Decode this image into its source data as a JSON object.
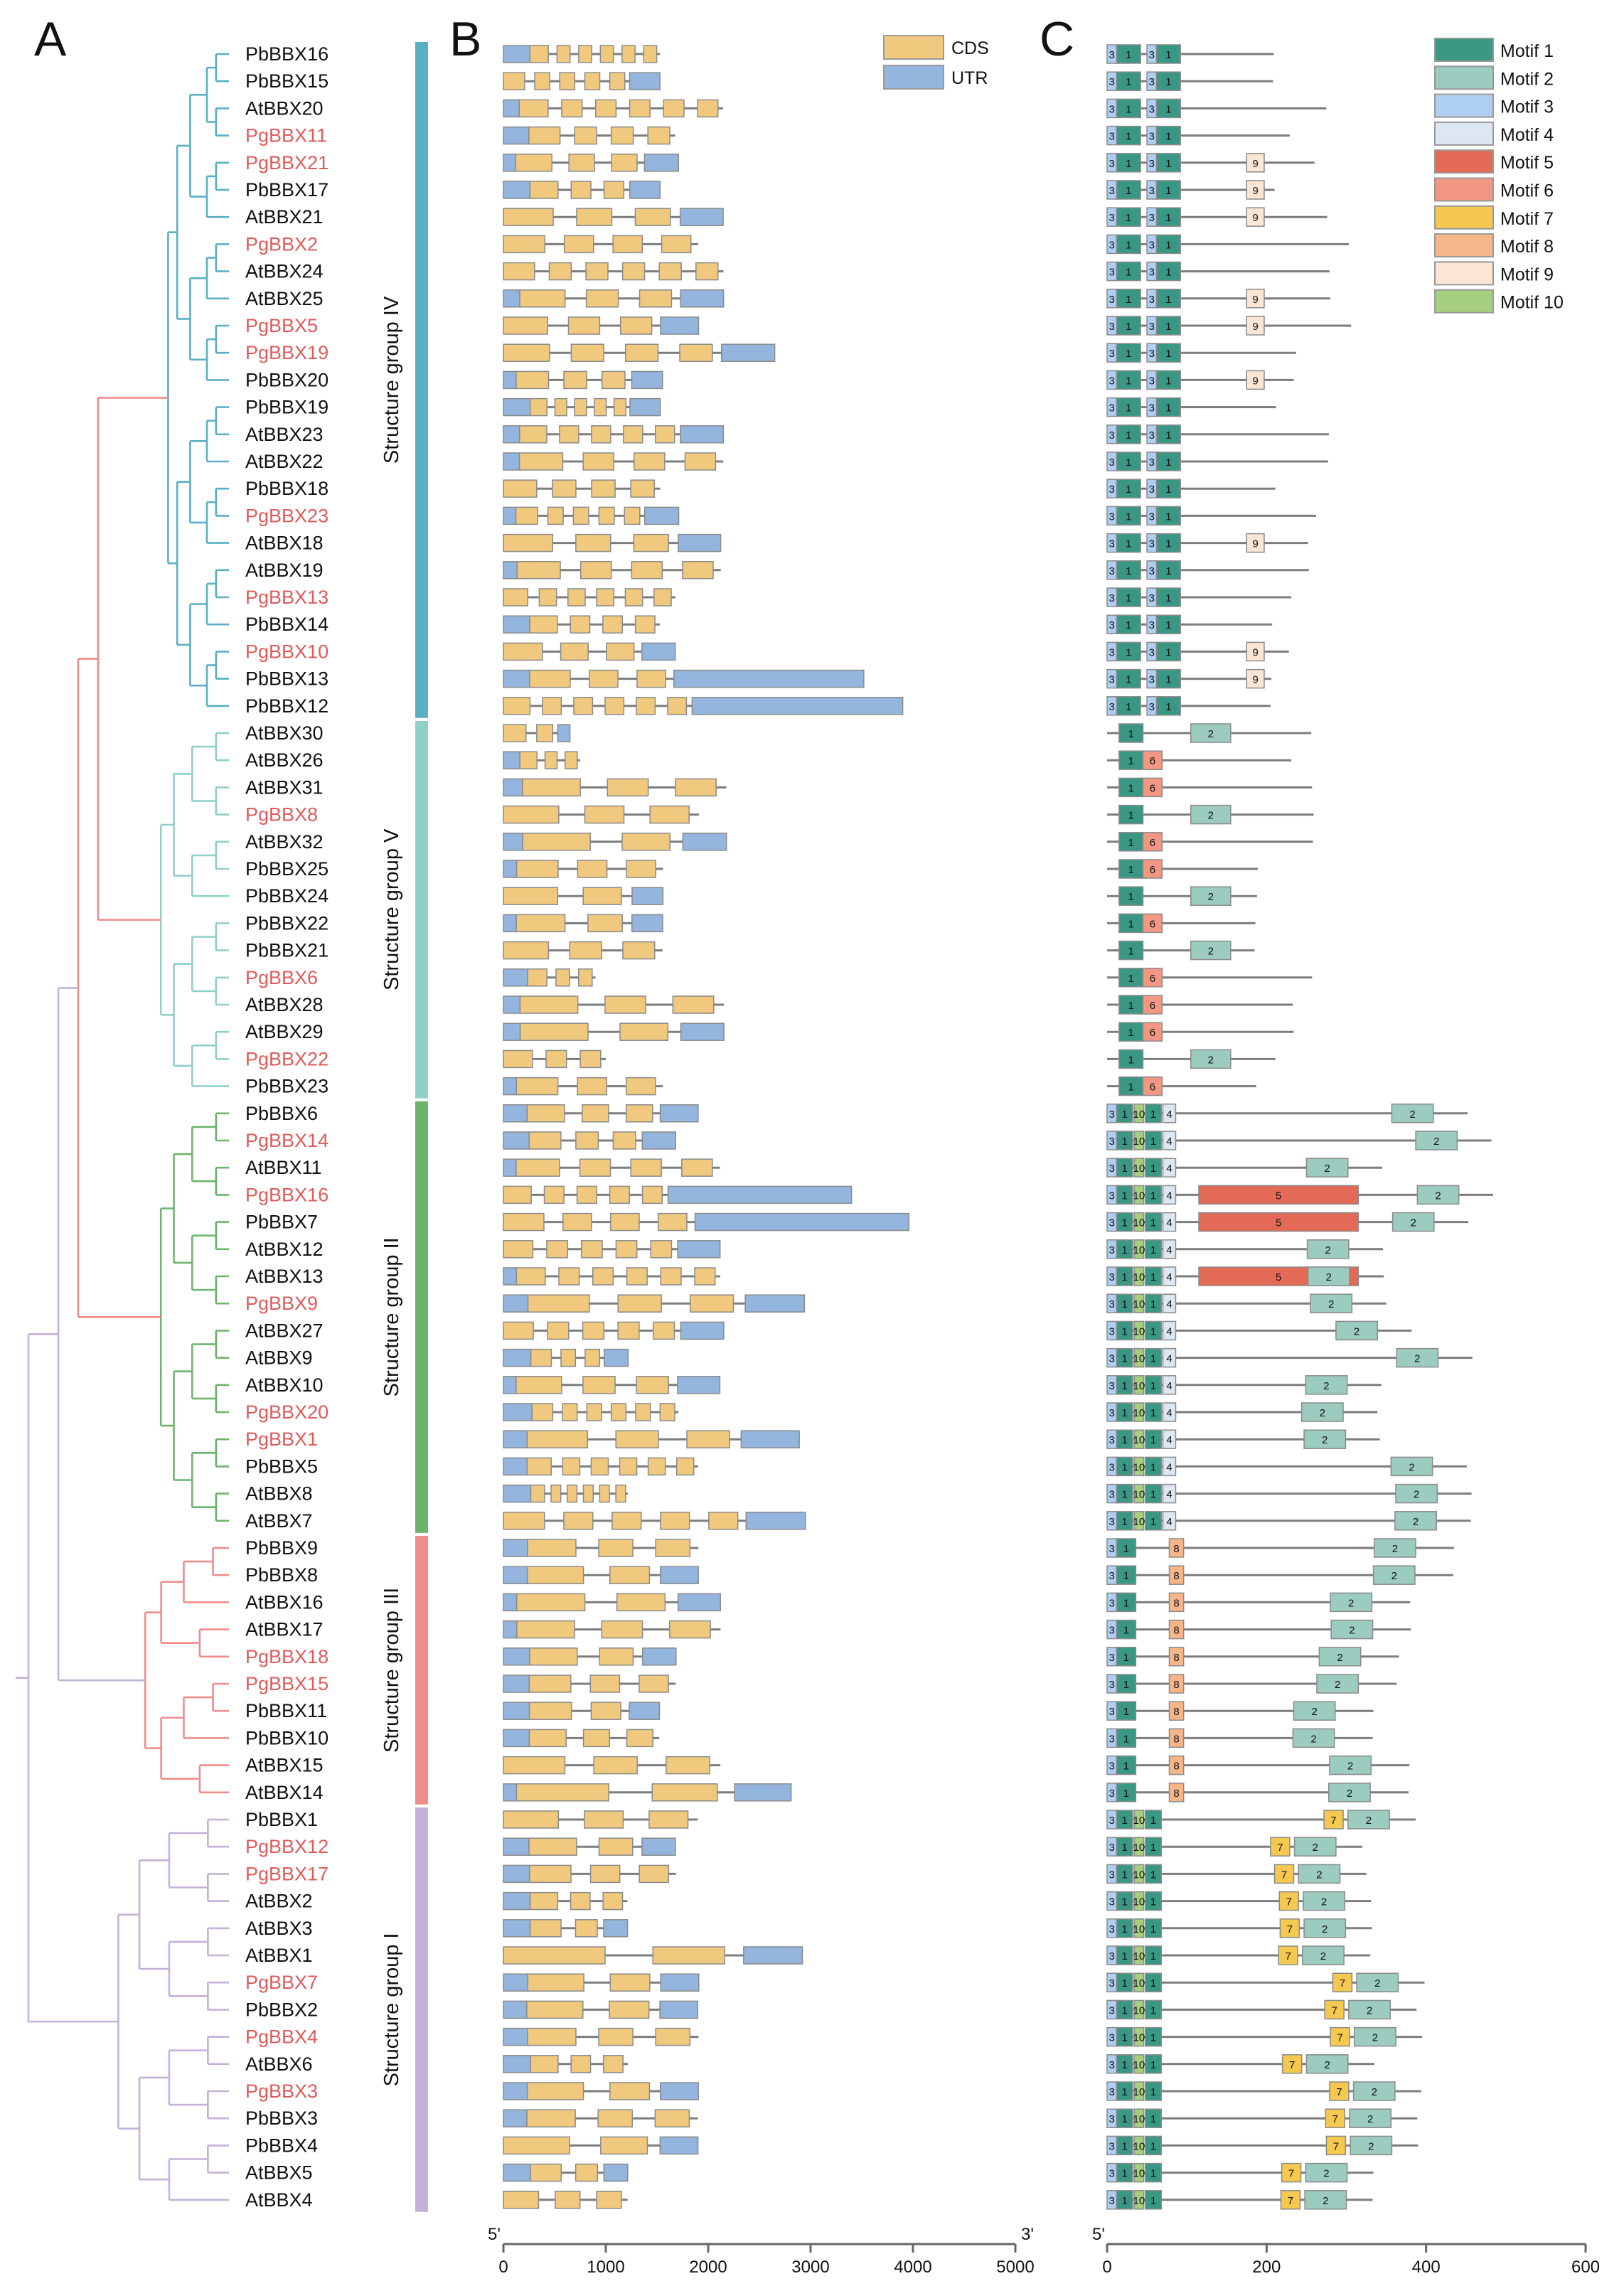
{
  "figure": {
    "panels": [
      "A",
      "B",
      "C"
    ],
    "group_colors": {
      "IV": "#5aafc2",
      "V": "#8fd0c9",
      "II": "#6cb46c",
      "III": "#ef8c8c",
      "I": "#c3b1d8"
    },
    "gene_color_pg": "#e05a5a",
    "gene_color_other": "#111111"
  },
  "genes": [
    {
      "name": "PbBBX16",
      "g": "IV"
    },
    {
      "name": "PbBBX15",
      "g": "IV"
    },
    {
      "name": "AtBBX20",
      "g": "IV"
    },
    {
      "name": "PgBBX11",
      "g": "IV"
    },
    {
      "name": "PgBBX21",
      "g": "IV"
    },
    {
      "name": "PbBBX17",
      "g": "IV"
    },
    {
      "name": "AtBBX21",
      "g": "IV"
    },
    {
      "name": "PgBBX2",
      "g": "IV"
    },
    {
      "name": "AtBBX24",
      "g": "IV"
    },
    {
      "name": "AtBBX25",
      "g": "IV"
    },
    {
      "name": "PgBBX5",
      "g": "IV"
    },
    {
      "name": "PgBBX19",
      "g": "IV"
    },
    {
      "name": "PbBBX20",
      "g": "IV"
    },
    {
      "name": "PbBBX19",
      "g": "IV"
    },
    {
      "name": "AtBBX23",
      "g": "IV"
    },
    {
      "name": "AtBBX22",
      "g": "IV"
    },
    {
      "name": "PbBBX18",
      "g": "IV"
    },
    {
      "name": "PgBBX23",
      "g": "IV"
    },
    {
      "name": "AtBBX18",
      "g": "IV"
    },
    {
      "name": "AtBBX19",
      "g": "IV"
    },
    {
      "name": "PgBBX13",
      "g": "IV"
    },
    {
      "name": "PbBBX14",
      "g": "IV"
    },
    {
      "name": "PgBBX10",
      "g": "IV"
    },
    {
      "name": "PbBBX13",
      "g": "IV"
    },
    {
      "name": "PbBBX12",
      "g": "IV"
    },
    {
      "name": "AtBBX30",
      "g": "V"
    },
    {
      "name": "AtBBX26",
      "g": "V"
    },
    {
      "name": "AtBBX31",
      "g": "V"
    },
    {
      "name": "PgBBX8",
      "g": "V"
    },
    {
      "name": "AtBBX32",
      "g": "V"
    },
    {
      "name": "PbBBX25",
      "g": "V"
    },
    {
      "name": "PbBBX24",
      "g": "V"
    },
    {
      "name": "PbBBX22",
      "g": "V"
    },
    {
      "name": "PbBBX21",
      "g": "V"
    },
    {
      "name": "PgBBX6",
      "g": "V"
    },
    {
      "name": "AtBBX28",
      "g": "V"
    },
    {
      "name": "AtBBX29",
      "g": "V"
    },
    {
      "name": "PgBBX22",
      "g": "V"
    },
    {
      "name": "PbBBX23",
      "g": "V"
    },
    {
      "name": "PbBBX6",
      "g": "II"
    },
    {
      "name": "PgBBX14",
      "g": "II"
    },
    {
      "name": "AtBBX11",
      "g": "II"
    },
    {
      "name": "PgBBX16",
      "g": "II"
    },
    {
      "name": "PbBBX7",
      "g": "II"
    },
    {
      "name": "AtBBX12",
      "g": "II"
    },
    {
      "name": "AtBBX13",
      "g": "II"
    },
    {
      "name": "PgBBX9",
      "g": "II"
    },
    {
      "name": "AtBBX27",
      "g": "II"
    },
    {
      "name": "AtBBX9",
      "g": "II"
    },
    {
      "name": "AtBBX10",
      "g": "II"
    },
    {
      "name": "PgBBX20",
      "g": "II"
    },
    {
      "name": "PgBBX1",
      "g": "II"
    },
    {
      "name": "PbBBX5",
      "g": "II"
    },
    {
      "name": "AtBBX8",
      "g": "II"
    },
    {
      "name": "AtBBX7",
      "g": "II"
    },
    {
      "name": "PbBBX9",
      "g": "III"
    },
    {
      "name": "PbBBX8",
      "g": "III"
    },
    {
      "name": "AtBBX16",
      "g": "III"
    },
    {
      "name": "AtBBX17",
      "g": "III"
    },
    {
      "name": "PgBBX18",
      "g": "III"
    },
    {
      "name": "PgBBX15",
      "g": "III"
    },
    {
      "name": "PbBBX11",
      "g": "III"
    },
    {
      "name": "PbBBX10",
      "g": "III"
    },
    {
      "name": "AtBBX15",
      "g": "III"
    },
    {
      "name": "AtBBX14",
      "g": "III"
    },
    {
      "name": "PbBBX1",
      "g": "I"
    },
    {
      "name": "PgBBX12",
      "g": "I"
    },
    {
      "name": "PgBBX17",
      "g": "I"
    },
    {
      "name": "AtBBX2",
      "g": "I"
    },
    {
      "name": "AtBBX3",
      "g": "I"
    },
    {
      "name": "AtBBX1",
      "g": "I"
    },
    {
      "name": "PgBBX7",
      "g": "I"
    },
    {
      "name": "PbBBX2",
      "g": "I"
    },
    {
      "name": "PgBBX4",
      "g": "I"
    },
    {
      "name": "AtBBX6",
      "g": "I"
    },
    {
      "name": "PgBBX3",
      "g": "I"
    },
    {
      "name": "PbBBX3",
      "g": "I"
    },
    {
      "name": "PbBBX4",
      "g": "I"
    },
    {
      "name": "AtBBX5",
      "g": "I"
    },
    {
      "name": "AtBBX4",
      "g": "I"
    }
  ],
  "groups": [
    {
      "key": "IV",
      "label": "Structure group IV",
      "first": 0,
      "last": 24
    },
    {
      "key": "V",
      "label": "Structure group V",
      "first": 25,
      "last": 38
    },
    {
      "key": "II",
      "label": "Structure group II",
      "first": 39,
      "last": 54
    },
    {
      "key": "III",
      "label": "Structure group III",
      "first": 55,
      "last": 64
    },
    {
      "key": "I",
      "label": "Structure group I",
      "first": 65,
      "last": 79
    }
  ],
  "panel_b": {
    "legend": [
      {
        "label": "CDS",
        "color": "#f0c97e"
      },
      {
        "label": "UTR",
        "color": "#93b5de"
      }
    ],
    "axis_start": "5'",
    "axis_end": "3'",
    "ticks": [
      "0",
      "1000",
      "2000",
      "3000",
      "4000",
      "5000"
    ]
  },
  "panel_c": {
    "axis_start": "5'",
    "ticks": [
      "0",
      "200",
      "400",
      "600"
    ],
    "motifs": [
      {
        "label": "Motif 1",
        "color": "#3a9784"
      },
      {
        "label": "Motif 2",
        "color": "#9ccbbf"
      },
      {
        "label": "Motif 3",
        "color": "#aecff2"
      },
      {
        "label": "Motif 4",
        "color": "#dde7f1"
      },
      {
        "label": "Motif 5",
        "color": "#e36a56"
      },
      {
        "label": "Motif 6",
        "color": "#f19783"
      },
      {
        "label": "Motif 7",
        "color": "#f5c84f"
      },
      {
        "label": "Motif 8",
        "color": "#f7b689"
      },
      {
        "label": "Motif 9",
        "color": "#fbe5d5"
      },
      {
        "label": "Motif 10",
        "color": "#a6cf7f"
      }
    ],
    "box_numbers": [
      "1",
      "2",
      "3",
      "4",
      "5",
      "6",
      "7",
      "8",
      "9",
      "10"
    ]
  }
}
